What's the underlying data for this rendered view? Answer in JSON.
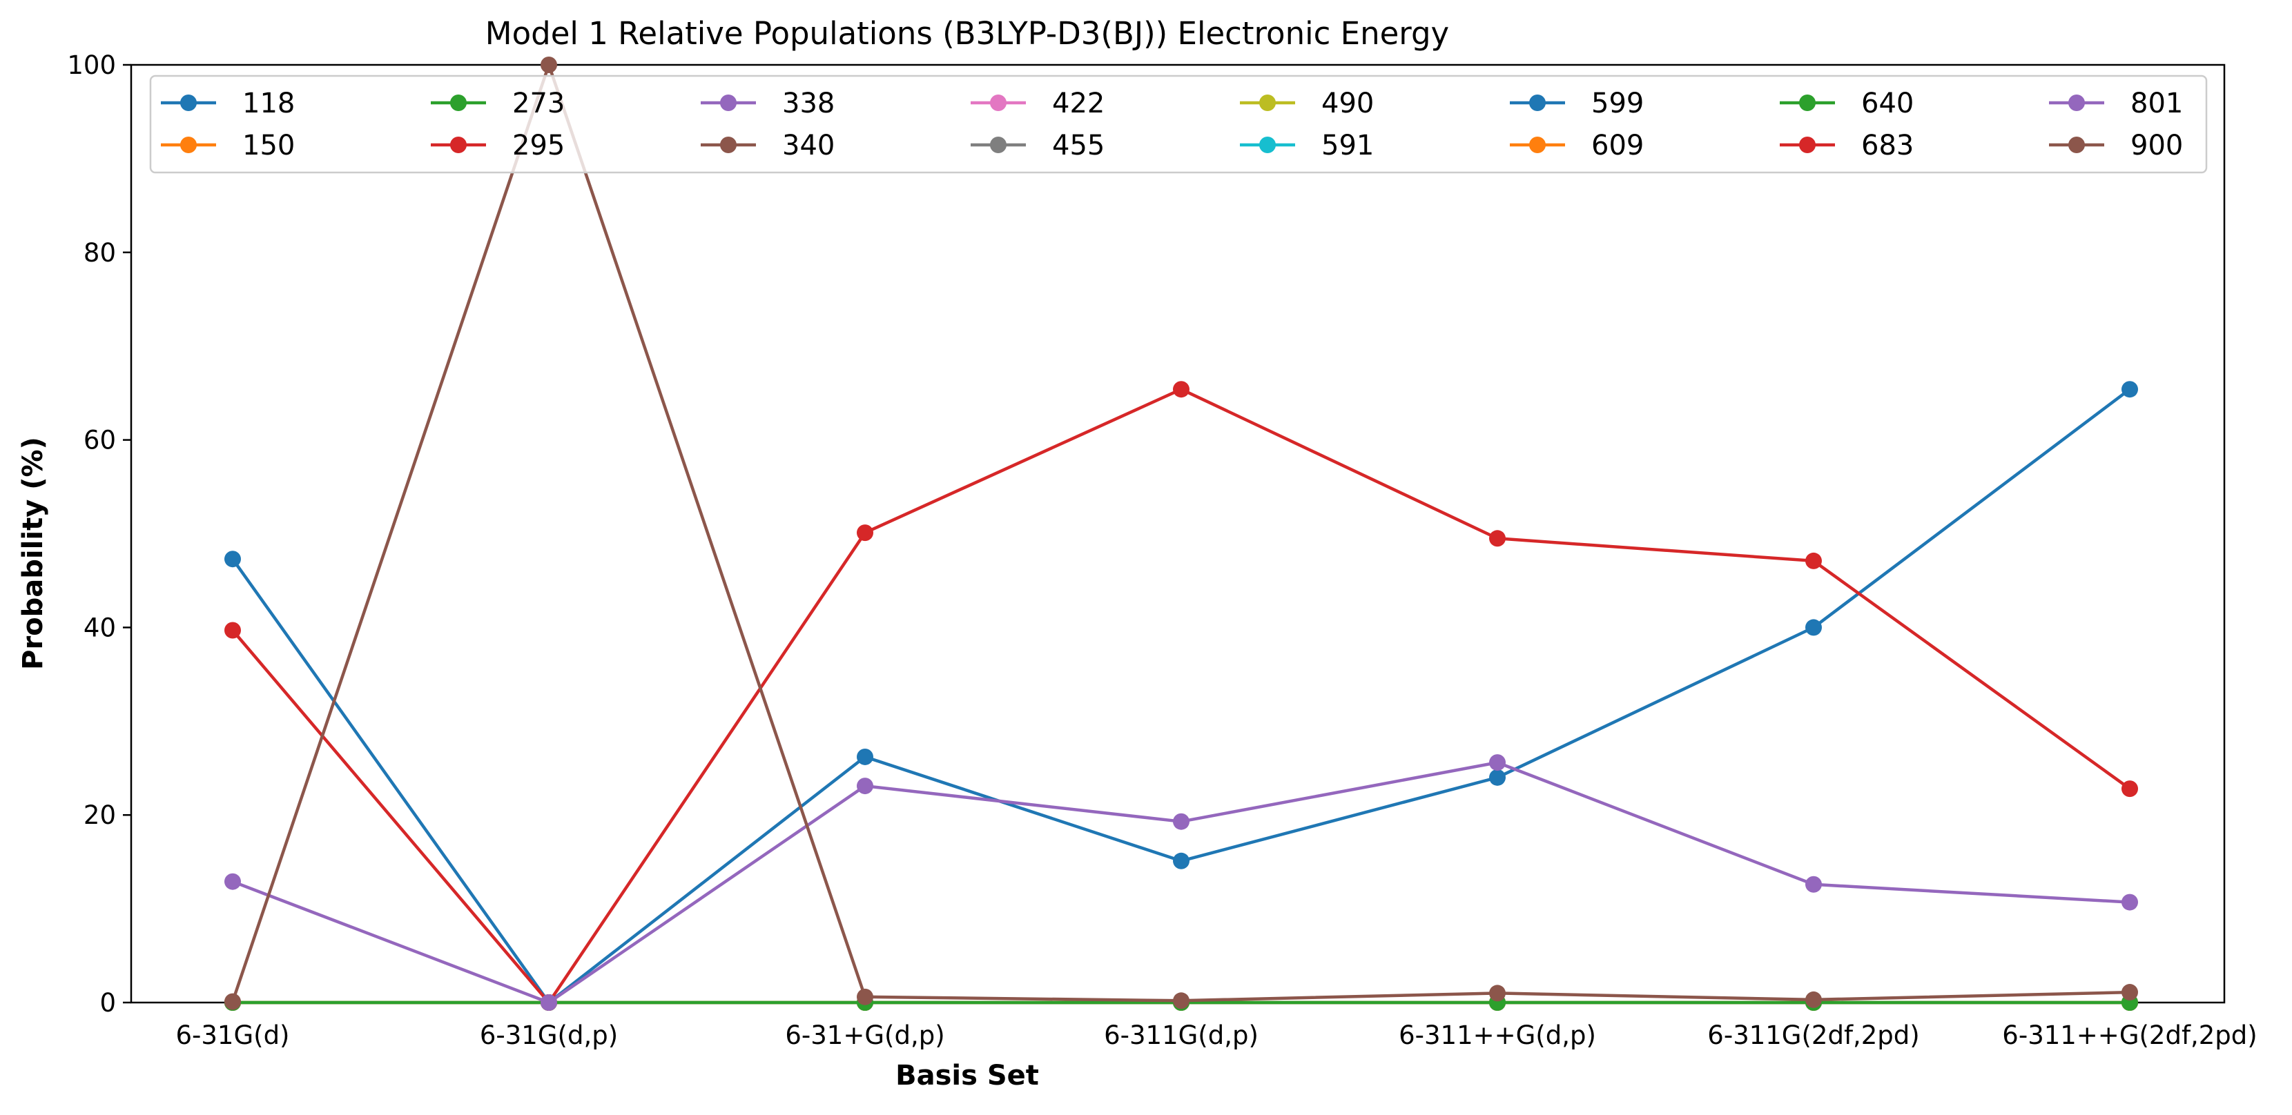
{
  "chart_data": {
    "type": "line",
    "title": "Model 1 Relative Populations (B3LYP-D3(BJ)) Electronic Energy",
    "xlabel": "Basis Set",
    "ylabel": "Probability (%)",
    "ylim": [
      0,
      100
    ],
    "yticks": [
      "0",
      "20",
      "40",
      "60",
      "80",
      "100"
    ],
    "grid": false,
    "legend_position": "top",
    "legend_columns": 8,
    "categories": [
      "6-31G(d)",
      "6-31G(d,p)",
      "6-31+G(d,p)",
      "6-311G(d,p)",
      "6-311++G(d,p)",
      "6-311G(2df,2pd)",
      "6-311++G(2df,2pd)"
    ],
    "series": [
      {
        "name": "118",
        "color": "#1f77b4",
        "values": [
          0,
          0,
          0,
          0,
          0,
          0,
          0
        ]
      },
      {
        "name": "150",
        "color": "#ff7f0e",
        "values": [
          0,
          0,
          0,
          0,
          0,
          0,
          0
        ]
      },
      {
        "name": "273",
        "color": "#2ca02c",
        "values": [
          0,
          0,
          0,
          0,
          0,
          0,
          0
        ]
      },
      {
        "name": "295",
        "color": "#d62728",
        "values": [
          0,
          0,
          0,
          0,
          0,
          0,
          0
        ]
      },
      {
        "name": "338",
        "color": "#9467bd",
        "values": [
          0,
          0,
          0,
          0,
          0,
          0,
          0
        ]
      },
      {
        "name": "340",
        "color": "#8c564b",
        "values": [
          0,
          0,
          0,
          0,
          0,
          0,
          0
        ]
      },
      {
        "name": "422",
        "color": "#e377c2",
        "values": [
          0,
          0,
          0,
          0,
          0,
          0,
          0
        ]
      },
      {
        "name": "455",
        "color": "#7f7f7f",
        "values": [
          0,
          0,
          0,
          0,
          0,
          0,
          0
        ]
      },
      {
        "name": "490",
        "color": "#bcbd22",
        "values": [
          0,
          0,
          0,
          0,
          0,
          0,
          0
        ]
      },
      {
        "name": "591",
        "color": "#17becf",
        "values": [
          0,
          0,
          0,
          0,
          0,
          0,
          0
        ]
      },
      {
        "name": "599",
        "color": "#1f77b4",
        "values": [
          47.3,
          0,
          26.2,
          15.1,
          24.0,
          40.0,
          65.4
        ]
      },
      {
        "name": "609",
        "color": "#ff7f0e",
        "values": [
          0,
          0,
          0,
          0,
          0,
          0,
          0
        ]
      },
      {
        "name": "640",
        "color": "#2ca02c",
        "values": [
          0,
          0,
          0,
          0,
          0,
          0,
          0
        ]
      },
      {
        "name": "683",
        "color": "#d62728",
        "values": [
          39.7,
          0,
          50.1,
          65.4,
          49.5,
          47.1,
          22.8
        ]
      },
      {
        "name": "801",
        "color": "#9467bd",
        "values": [
          12.9,
          0,
          23.1,
          19.3,
          25.6,
          12.6,
          10.7
        ]
      },
      {
        "name": "900",
        "color": "#8c564b",
        "values": [
          0.1,
          100,
          0.6,
          0.2,
          1.0,
          0.3,
          1.1
        ]
      }
    ]
  }
}
